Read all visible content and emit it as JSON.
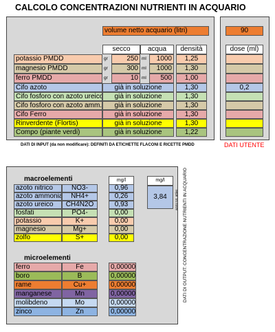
{
  "title": "CALCOLO CONCENTRAZIONI NUTRIENTI IN ACQUARIO",
  "volume": {
    "label": "volume netto acquario (litri)",
    "value": "90"
  },
  "input_headers": {
    "secco": "secco",
    "acqua": "acqua",
    "densita": "densità",
    "dose": "dose (ml)"
  },
  "units": {
    "gr": "gr",
    "ml": "ml"
  },
  "pmdd_rows": [
    {
      "name": "potassio PMDD",
      "secco": "250",
      "acqua": "1000",
      "densita": "1,25",
      "color": "#f8cbad",
      "dose_color": "#f8cbad"
    },
    {
      "name": "magnesio PMDD",
      "secco": "300",
      "acqua": "1000",
      "densita": "1,30",
      "color": "#d5c9a8",
      "dose_color": "#d5c9a8"
    },
    {
      "name": "ferro PMDD",
      "secco": "10",
      "acqua": "500",
      "densita": "1,00",
      "color": "#e6a9a9",
      "dose_color": "#e6a9a9"
    }
  ],
  "product_rows": [
    {
      "name": "Cifo azoto",
      "status": "già in soluzione",
      "densita": "1,30",
      "dose": "0,2",
      "color": "#b4c7e7"
    },
    {
      "name": "Cifo fosforo con azoto ureico",
      "status": "già in soluzione",
      "densita": "1,30",
      "dose": "",
      "color": "#c5e0b4"
    },
    {
      "name": "Cifo fosforo con azoto amm.",
      "status": "già in soluzione",
      "densita": "1,30",
      "dose": "",
      "color": "#d5c9a8"
    },
    {
      "name": "Cifo Ferro",
      "status": "già in soluzione",
      "densita": "1,30",
      "dose": "",
      "color": "#e6a9a9"
    },
    {
      "name": "Rinverdente (Flortis)",
      "status": "già in soluzione",
      "densita": "1,30",
      "dose": "",
      "color": "#ffff00"
    },
    {
      "name": "Compo (piante verdi)",
      "status": "già in soluzione",
      "densita": "1,22",
      "dose": "",
      "color": "#a9c47f"
    }
  ],
  "input_note": "DATI DI INPUT (da non modificare): DEFINITI DA ETICHETTE FLACONI E RICETTE PMDD",
  "user_note": "DATI UTENTE",
  "macro": {
    "title": "macroelementi",
    "unit": "mg/l",
    "side_unit": "mg/l",
    "side_value": "3,84",
    "side_label": "azoto tot. attivo",
    "rows": [
      {
        "name": "azoto nitrico",
        "formula": "NO3-",
        "value": "0,96",
        "color": "#b4c7e7"
      },
      {
        "name": "azoto ammoniacale",
        "formula": "NH4+",
        "value": "0,26",
        "color": "#b4c7e7"
      },
      {
        "name": "azoto ureico",
        "formula": "CH4N2O",
        "value": "0,93",
        "color": "#b4c7e7"
      },
      {
        "name": "fosfati",
        "formula": "PO4-",
        "value": "0,00",
        "color": "#c5e0b4"
      },
      {
        "name": "potassio",
        "formula": "K+",
        "value": "0,00",
        "color": "#f8cbad"
      },
      {
        "name": "magnesio",
        "formula": "Mg+",
        "value": "0,00",
        "color": "#d5c9a8"
      },
      {
        "name": "zolfo",
        "formula": "S+",
        "value": "0,00",
        "color": "#ffff00"
      }
    ]
  },
  "micro": {
    "title": "microelementi",
    "rows": [
      {
        "name": "ferro",
        "formula": "Fe",
        "value": "0,00000",
        "color": "#e6a9a9"
      },
      {
        "name": "boro",
        "formula": "B",
        "value": "0,00000",
        "color": "#9bbb59"
      },
      {
        "name": "rame",
        "formula": "Cu+",
        "value": "0,00000",
        "color": "#ed7d31"
      },
      {
        "name": "manganese",
        "formula": "Mn",
        "value": "0,00000",
        "color": "#8064a2"
      },
      {
        "name": "molibdeno",
        "formula": "Mo",
        "value": "0,00000",
        "color": "#c5d9f1"
      },
      {
        "name": "zinco",
        "formula": "Zn",
        "value": "0,00000",
        "color": "#8db3e2"
      }
    ]
  },
  "output_note": "DATI DI OUTPUT: CONCENTRAZIONE NUTRIENTI IN ACQUARIO",
  "colors": {
    "panel": "#d8d8d8",
    "volume": "#ed7d31",
    "user_note": "#ff0000"
  }
}
